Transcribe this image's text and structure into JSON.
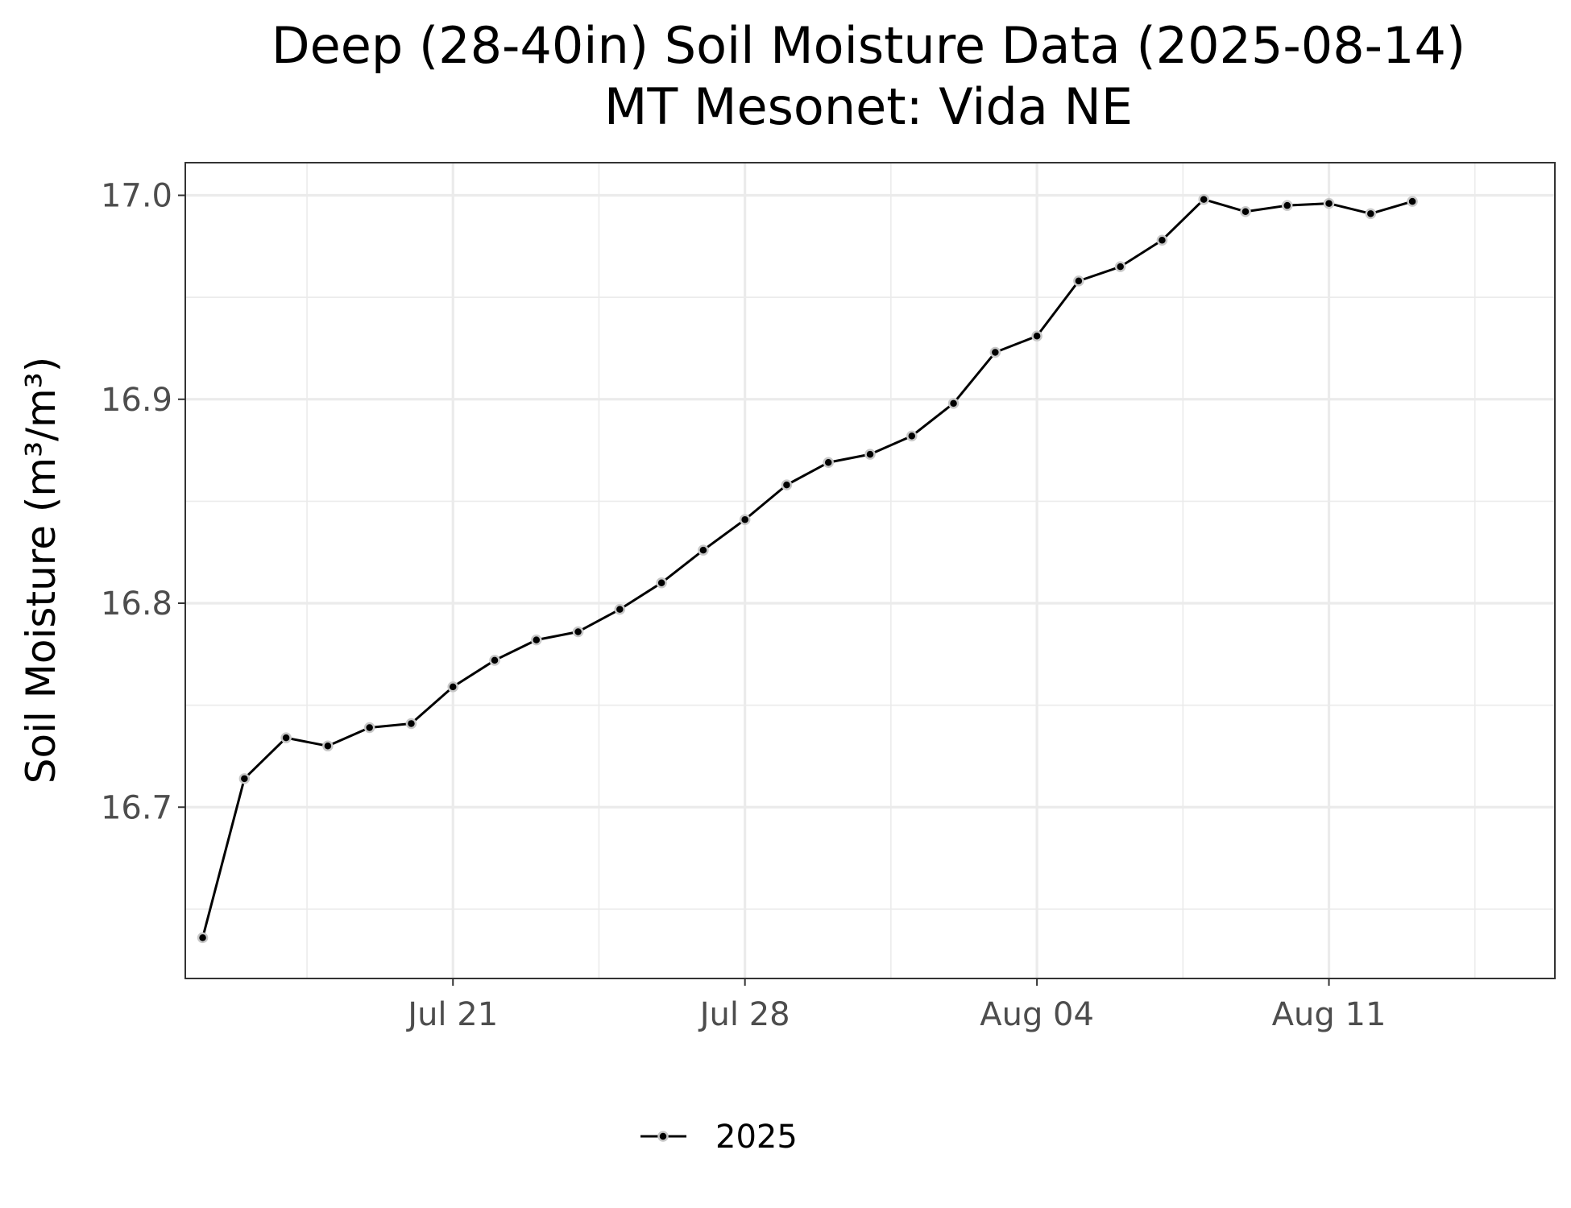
{
  "chart_data": {
    "type": "line",
    "title": "Deep (28-40in) Soil Moisture Data (2025-08-14)",
    "subtitle": "MT Mesonet: Vida NE",
    "xlabel": "",
    "ylabel": "Soil Moisture (m³/m³)",
    "x_type": "date",
    "xlim": [
      "2025-07-14T14:00",
      "2025-08-16T10:00"
    ],
    "ylim": [
      16.616,
      17.016
    ],
    "x_ticks": [
      {
        "date": "2025-07-21",
        "label": "Jul 21"
      },
      {
        "date": "2025-07-28",
        "label": "Jul 28"
      },
      {
        "date": "2025-08-04",
        "label": "Aug 04"
      },
      {
        "date": "2025-08-11",
        "label": "Aug 11"
      }
    ],
    "x_minor_ticks": [
      "2025-07-17T12:00",
      "2025-07-24T12:00",
      "2025-07-31T12:00",
      "2025-08-07T12:00",
      "2025-08-14T12:00"
    ],
    "y_ticks": [
      16.7,
      16.8,
      16.9,
      17.0
    ],
    "y_tick_labels": [
      "16.7",
      "16.8",
      "16.9",
      "17.0"
    ],
    "y_minor_ticks": [
      16.65,
      16.75,
      16.85,
      16.95
    ],
    "grid": true,
    "legend": {
      "position": "bottom"
    },
    "series": [
      {
        "name": "2025",
        "color": "#000000",
        "point_fill": "#000000",
        "point_stroke": "#c8c8c8",
        "points": [
          {
            "x": "2025-07-15",
            "y": 16.636
          },
          {
            "x": "2025-07-16",
            "y": 16.714
          },
          {
            "x": "2025-07-17",
            "y": 16.734
          },
          {
            "x": "2025-07-18",
            "y": 16.73
          },
          {
            "x": "2025-07-19",
            "y": 16.739
          },
          {
            "x": "2025-07-20",
            "y": 16.741
          },
          {
            "x": "2025-07-21",
            "y": 16.759
          },
          {
            "x": "2025-07-22",
            "y": 16.772
          },
          {
            "x": "2025-07-23",
            "y": 16.782
          },
          {
            "x": "2025-07-24",
            "y": 16.786
          },
          {
            "x": "2025-07-25",
            "y": 16.797
          },
          {
            "x": "2025-07-26",
            "y": 16.81
          },
          {
            "x": "2025-07-27",
            "y": 16.826
          },
          {
            "x": "2025-07-28",
            "y": 16.841
          },
          {
            "x": "2025-07-29",
            "y": 16.858
          },
          {
            "x": "2025-07-30",
            "y": 16.869
          },
          {
            "x": "2025-07-31",
            "y": 16.873
          },
          {
            "x": "2025-08-01",
            "y": 16.882
          },
          {
            "x": "2025-08-02",
            "y": 16.898
          },
          {
            "x": "2025-08-03",
            "y": 16.923
          },
          {
            "x": "2025-08-04",
            "y": 16.931
          },
          {
            "x": "2025-08-05",
            "y": 16.958
          },
          {
            "x": "2025-08-06",
            "y": 16.965
          },
          {
            "x": "2025-08-07",
            "y": 16.978
          },
          {
            "x": "2025-08-08",
            "y": 16.998
          },
          {
            "x": "2025-08-09",
            "y": 16.992
          },
          {
            "x": "2025-08-10",
            "y": 16.995
          },
          {
            "x": "2025-08-11",
            "y": 16.996
          },
          {
            "x": "2025-08-12",
            "y": 16.991
          },
          {
            "x": "2025-08-13",
            "y": 16.997
          }
        ]
      }
    ]
  }
}
